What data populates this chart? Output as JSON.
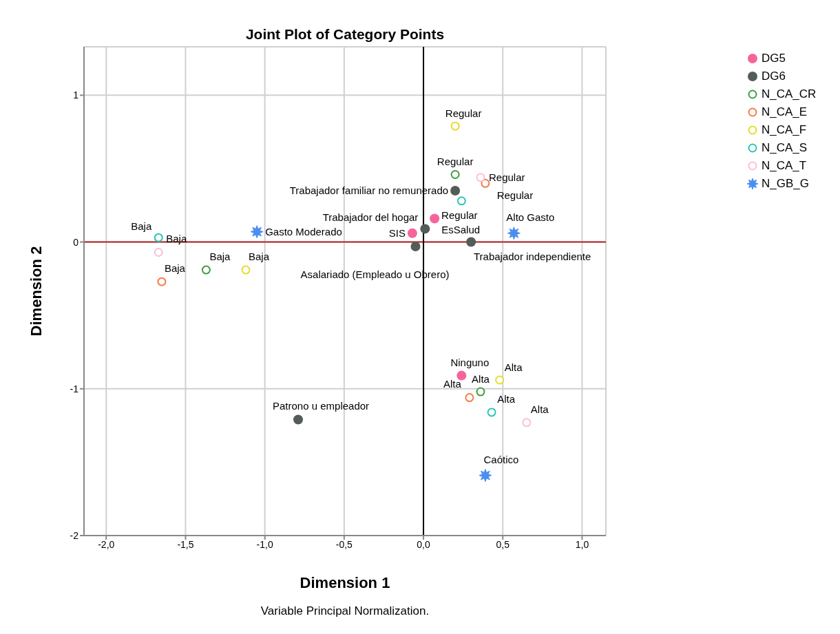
{
  "chart_data": {
    "type": "scatter",
    "title": "Joint Plot of Category Points",
    "xlabel": "Dimension 1",
    "ylabel": "Dimension 2",
    "annotations": [
      "Variable Principal Normalization."
    ],
    "xlim": [
      -2.14,
      1.15
    ],
    "xticks": [
      {
        "value": -2,
        "label": "-2,0"
      },
      {
        "value": -1.5,
        "label": "-1,5"
      },
      {
        "value": -1,
        "label": "-1,0"
      },
      {
        "value": -0.5,
        "label": "-0,5"
      },
      {
        "value": 0,
        "label": "0,0"
      },
      {
        "value": 0.5,
        "label": "0,5"
      },
      {
        "value": 1,
        "label": "1,0"
      }
    ],
    "ylim": [
      -2,
      1.33
    ],
    "yticks": [
      -2,
      -1,
      0,
      1
    ],
    "grid": true,
    "legend": "top right",
    "ref_lines": [
      {
        "axis": "y",
        "value": 0,
        "color": "#b22222"
      },
      {
        "axis": "x",
        "value": 0,
        "color": "#000000"
      }
    ],
    "series": [
      {
        "name": "DG5",
        "color": "#f7649b",
        "marker": "circle",
        "x": [
          -0.07,
          0.07,
          0.24
        ],
        "values": [
          0.06,
          0.16,
          -0.91
        ],
        "value_labels": [
          "SIS",
          "EsSalud",
          "Ninguno"
        ]
      },
      {
        "name": "DG6",
        "color": "#535c56",
        "marker": "circle",
        "x": [
          0.2,
          0.01,
          -0.05,
          0.3,
          -0.79
        ],
        "values": [
          0.35,
          0.09,
          -0.03,
          0.0,
          -1.21
        ],
        "value_labels": [
          "Trabajador familiar no remunerado",
          "Trabajador del hogar",
          "Asalariado (Empleado u Obrero)",
          "Trabajador independiente",
          "Patrono u empleador"
        ]
      },
      {
        "name": "N_CA_CR",
        "color": "#3f9e3f",
        "marker": "circle-open",
        "x": [
          -1.37,
          0.2,
          0.36
        ],
        "values": [
          -0.19,
          0.46,
          -1.02
        ],
        "value_labels": [
          "Baja",
          "Regular",
          "Alta"
        ]
      },
      {
        "name": "N_CA_E",
        "color": "#f77b4a",
        "marker": "circle-open",
        "x": [
          -1.65,
          0.39,
          0.29
        ],
        "values": [
          -0.27,
          0.4,
          -1.06
        ],
        "value_labels": [
          "Baja",
          "Regular",
          "Alta"
        ]
      },
      {
        "name": "N_CA_F",
        "color": "#e6dc2a",
        "marker": "circle-open",
        "x": [
          -1.12,
          0.2,
          0.48
        ],
        "values": [
          -0.19,
          0.79,
          -0.94
        ],
        "value_labels": [
          "Baja",
          "Regular",
          "Alta"
        ]
      },
      {
        "name": "N_CA_S",
        "color": "#2ec4b2",
        "marker": "circle-open",
        "x": [
          -1.67,
          0.24,
          0.43
        ],
        "values": [
          0.03,
          0.28,
          -1.16
        ],
        "value_labels": [
          "Baja",
          "Regular",
          "Alta"
        ]
      },
      {
        "name": "N_CA_T",
        "color": "#fbbfd6",
        "marker": "circle-open",
        "x": [
          -1.67,
          0.36,
          0.65
        ],
        "values": [
          -0.07,
          0.44,
          -1.23
        ],
        "value_labels": [
          "Baja",
          "Regular",
          "Alta"
        ]
      },
      {
        "name": "N_GB_G",
        "color": "#4a8ff0",
        "marker": "star",
        "x": [
          -1.05,
          0.57,
          0.39
        ],
        "values": [
          0.07,
          0.06,
          -1.59
        ],
        "value_labels": [
          "Gasto Moderado",
          "Alto Gasto",
          "Caótico"
        ]
      }
    ]
  }
}
